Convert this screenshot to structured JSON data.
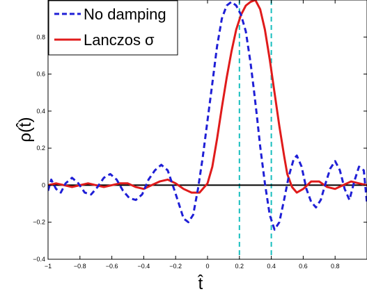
{
  "chart_data": {
    "type": "line",
    "title": "",
    "xlabel": "t̂",
    "ylabel": "ρ(t̂)",
    "xlim": [
      -1,
      1
    ],
    "ylim": [
      -0.4,
      1
    ],
    "grid": false,
    "legend_position": "top-left",
    "x_ticks": [
      -1,
      -0.8,
      -0.6,
      -0.4,
      -0.2,
      0,
      0.2,
      0.4,
      0.6,
      0.8
    ],
    "x_tick_labels": [
      "−1",
      "−0.8",
      "−0.6",
      "−0.4",
      "−0.2",
      "0",
      "0.2",
      "0.4",
      "0.6",
      "0.8"
    ],
    "y_ticks": [
      -0.4,
      -0.2,
      0,
      0.2,
      0.4,
      0.6,
      0.8
    ],
    "y_tick_labels": [
      "−0.4",
      "−0.2",
      "0",
      "0.2",
      "0.4",
      "0.6",
      "0.8"
    ],
    "vertical_lines": [
      {
        "x": 0.2,
        "color": "#17bebe",
        "style": "dashed"
      },
      {
        "x": 0.4,
        "color": "#17bebe",
        "style": "dashed"
      }
    ],
    "reference_line": {
      "y": 0,
      "color": "#000000"
    },
    "series": [
      {
        "name": "No damping",
        "color": "#1f1fd6",
        "style": "dashed",
        "x": [
          -1,
          -0.98,
          -0.95,
          -0.92,
          -0.89,
          -0.85,
          -0.81,
          -0.77,
          -0.73,
          -0.69,
          -0.65,
          -0.61,
          -0.57,
          -0.53,
          -0.49,
          -0.45,
          -0.41,
          -0.37,
          -0.33,
          -0.29,
          -0.25,
          -0.21,
          -0.18,
          -0.15,
          -0.12,
          -0.09,
          -0.06,
          -0.03,
          0,
          0.03,
          0.06,
          0.09,
          0.12,
          0.15,
          0.18,
          0.21,
          0.24,
          0.27,
          0.29,
          0.31,
          0.33,
          0.36,
          0.39,
          0.42,
          0.45,
          0.48,
          0.51,
          0.54,
          0.56,
          0.59,
          0.62,
          0.65,
          0.68,
          0.71,
          0.74,
          0.77,
          0.8,
          0.83,
          0.86,
          0.89,
          0.92,
          0.95,
          0.98,
          1
        ],
        "y": [
          -0.03,
          0.03,
          -0.02,
          -0.04,
          0.01,
          0.04,
          0.01,
          -0.04,
          -0.05,
          -0.01,
          0.04,
          0.06,
          0.03,
          -0.03,
          -0.07,
          -0.08,
          -0.05,
          0.03,
          0.08,
          0.11,
          0.08,
          -0.02,
          -0.1,
          -0.18,
          -0.2,
          -0.16,
          -0.02,
          0.15,
          0.35,
          0.55,
          0.75,
          0.9,
          0.97,
          0.99,
          0.97,
          0.92,
          0.83,
          0.66,
          0.52,
          0.37,
          0.21,
          0.01,
          -0.16,
          -0.24,
          -0.2,
          -0.08,
          0.05,
          0.14,
          0.16,
          0.1,
          -0.02,
          -0.09,
          -0.12,
          -0.08,
          0.01,
          0.09,
          0.13,
          0.08,
          -0.02,
          -0.08,
          0.02,
          0.1,
          0.08,
          -0.1
        ]
      },
      {
        "name": "Lanczos σ",
        "color": "#e01b1b",
        "style": "solid",
        "x": [
          -1,
          -0.95,
          -0.9,
          -0.85,
          -0.8,
          -0.75,
          -0.7,
          -0.65,
          -0.6,
          -0.55,
          -0.5,
          -0.45,
          -0.4,
          -0.35,
          -0.3,
          -0.25,
          -0.2,
          -0.15,
          -0.1,
          -0.05,
          0,
          0.03,
          0.06,
          0.09,
          0.12,
          0.15,
          0.18,
          0.21,
          0.24,
          0.27,
          0.3,
          0.33,
          0.36,
          0.39,
          0.42,
          0.45,
          0.48,
          0.5,
          0.53,
          0.56,
          0.6,
          0.65,
          0.7,
          0.75,
          0.8,
          0.85,
          0.9,
          0.95,
          1
        ],
        "y": [
          0,
          0.01,
          0,
          -0.01,
          0,
          0.01,
          0,
          -0.01,
          0,
          0.01,
          0.01,
          -0.01,
          -0.02,
          0,
          0.02,
          0.03,
          0.01,
          -0.02,
          -0.04,
          -0.04,
          0.01,
          0.1,
          0.25,
          0.42,
          0.58,
          0.72,
          0.84,
          0.92,
          0.97,
          0.99,
          1,
          0.95,
          0.84,
          0.68,
          0.5,
          0.32,
          0.16,
          0.06,
          -0.01,
          -0.04,
          -0.02,
          0.02,
          0.02,
          -0.01,
          -0.02,
          0,
          0.02,
          0.01,
          0
        ]
      }
    ]
  }
}
